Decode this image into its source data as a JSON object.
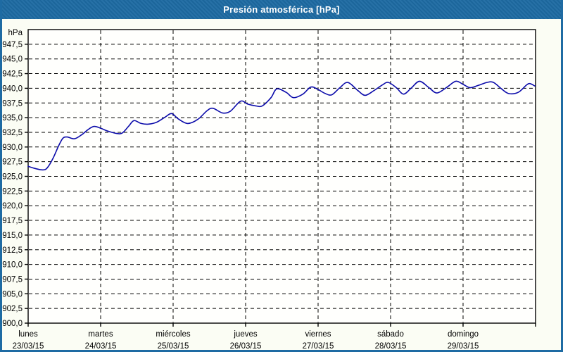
{
  "window": {
    "title": "Presión atmosférica [hPa]"
  },
  "colors": {
    "frame": "#1e6ba3",
    "titlebar_bg": "#1e6ba3",
    "title_text": "#ffffff",
    "content_bg": "#fbfdf4",
    "plot_bg": "#fffffd",
    "plot_border": "#000000",
    "grid": "#000000",
    "tick": "#000000",
    "label_text": "#000000",
    "line": "#0b0baa"
  },
  "chart_data": {
    "type": "line",
    "title": "Presión atmosférica [hPa]",
    "unit_label": "hPa",
    "grid": "dashed",
    "legend_position": "none",
    "y_axis": {
      "min": 900,
      "max": 950,
      "tick_step": 2.5,
      "tick_labels_top_to_bottom": [
        "947,5",
        "945,0",
        "942,5",
        "940,0",
        "937,5",
        "935,0",
        "932,5",
        "930,0",
        "927,5",
        "925,0",
        "922,5",
        "920,0",
        "917,5",
        "915,0",
        "912,5",
        "910,0",
        "907,5",
        "905,0",
        "902,5",
        "900,0"
      ]
    },
    "x_axis": {
      "unit": "days",
      "range_days": 7,
      "days": [
        {
          "name": "lunes",
          "date": "23/03/15"
        },
        {
          "name": "martes",
          "date": "24/03/15"
        },
        {
          "name": "miércoles",
          "date": "25/03/15"
        },
        {
          "name": "jueves",
          "date": "26/03/15"
        },
        {
          "name": "viernes",
          "date": "27/03/15"
        },
        {
          "name": "sábado",
          "date": "28/03/15"
        },
        {
          "name": "domingo",
          "date": "29/03/15"
        }
      ]
    },
    "series": [
      {
        "name": "Presión atmosférica",
        "color": "#0b0baa",
        "points_t_days_hpa": [
          [
            0.0,
            926.7
          ],
          [
            0.11,
            926.3
          ],
          [
            0.2,
            926.1
          ],
          [
            0.26,
            926.4
          ],
          [
            0.34,
            928.0
          ],
          [
            0.42,
            930.2
          ],
          [
            0.48,
            931.5
          ],
          [
            0.54,
            931.7
          ],
          [
            0.64,
            931.4
          ],
          [
            0.74,
            932.1
          ],
          [
            0.83,
            933.0
          ],
          [
            0.91,
            933.5
          ],
          [
            1.0,
            933.2
          ],
          [
            1.1,
            932.7
          ],
          [
            1.22,
            932.3
          ],
          [
            1.3,
            932.4
          ],
          [
            1.39,
            933.6
          ],
          [
            1.46,
            934.5
          ],
          [
            1.56,
            934.0
          ],
          [
            1.66,
            933.9
          ],
          [
            1.77,
            934.2
          ],
          [
            1.89,
            935.1
          ],
          [
            1.98,
            935.7
          ],
          [
            2.07,
            934.8
          ],
          [
            2.2,
            934.0
          ],
          [
            2.34,
            934.7
          ],
          [
            2.47,
            936.2
          ],
          [
            2.55,
            936.6
          ],
          [
            2.68,
            935.8
          ],
          [
            2.79,
            936.1
          ],
          [
            2.93,
            937.8
          ],
          [
            3.03,
            937.3
          ],
          [
            3.14,
            937.0
          ],
          [
            3.23,
            937.0
          ],
          [
            3.35,
            938.4
          ],
          [
            3.43,
            939.9
          ],
          [
            3.56,
            939.3
          ],
          [
            3.66,
            938.4
          ],
          [
            3.79,
            939.0
          ],
          [
            3.9,
            940.2
          ],
          [
            4.0,
            939.8
          ],
          [
            4.1,
            939.1
          ],
          [
            4.19,
            938.9
          ],
          [
            4.3,
            940.1
          ],
          [
            4.41,
            941.0
          ],
          [
            4.55,
            939.6
          ],
          [
            4.65,
            938.8
          ],
          [
            4.77,
            939.6
          ],
          [
            4.89,
            940.6
          ],
          [
            4.97,
            941.0
          ],
          [
            5.08,
            940.1
          ],
          [
            5.18,
            939.0
          ],
          [
            5.29,
            940.1
          ],
          [
            5.4,
            941.2
          ],
          [
            5.53,
            940.1
          ],
          [
            5.64,
            939.2
          ],
          [
            5.78,
            940.2
          ],
          [
            5.9,
            941.2
          ],
          [
            6.01,
            940.6
          ],
          [
            6.1,
            940.1
          ],
          [
            6.21,
            940.5
          ],
          [
            6.33,
            941.0
          ],
          [
            6.42,
            941.0
          ],
          [
            6.53,
            939.9
          ],
          [
            6.63,
            939.1
          ],
          [
            6.76,
            939.3
          ],
          [
            6.87,
            940.5
          ],
          [
            6.92,
            940.8
          ],
          [
            6.99,
            940.4
          ]
        ]
      }
    ]
  }
}
